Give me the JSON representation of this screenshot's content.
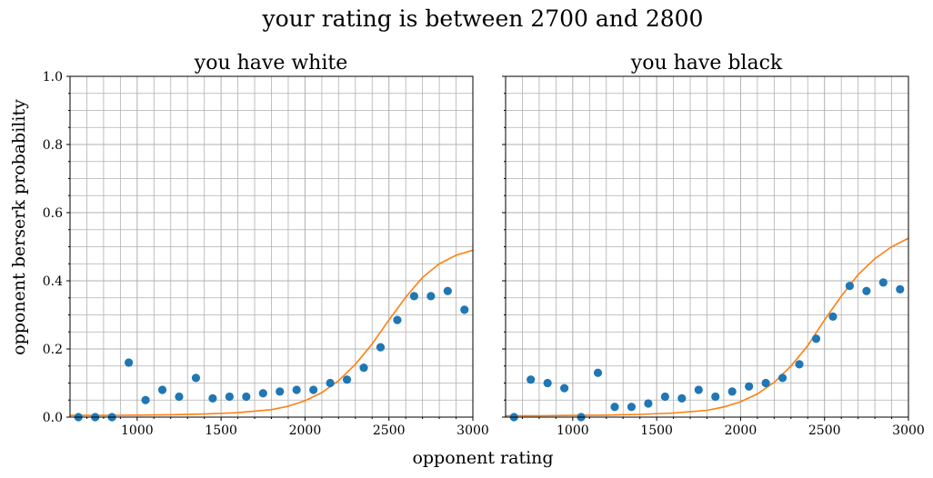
{
  "figure": {
    "suptitle": "your rating is between 2700 and 2800",
    "xlabel": "opponent rating",
    "ylabel": "opponent berserk probability"
  },
  "chart_data": [
    {
      "type": "scatter",
      "title": "you have white",
      "xlim": [
        600,
        3000
      ],
      "ylim": [
        0,
        1.0
      ],
      "xticks": [
        1000,
        1500,
        2000,
        2500,
        3000
      ],
      "xtick_labels": [
        "1000",
        "1500",
        "2000",
        "2500",
        "3000"
      ],
      "yticks": [
        0.0,
        0.2,
        0.4,
        0.6,
        0.8,
        1.0
      ],
      "ytick_labels": [
        "0.0",
        "0.2",
        "0.4",
        "0.6",
        "0.8",
        "1.0"
      ],
      "grid": true,
      "marker_color": "#1f77b4",
      "curve_color": "#ff7f0e",
      "points": {
        "x": [
          650,
          750,
          850,
          950,
          1050,
          1150,
          1250,
          1350,
          1450,
          1550,
          1650,
          1750,
          1850,
          1950,
          2050,
          2150,
          2250,
          2350,
          2450,
          2550,
          2650,
          2750,
          2850,
          2950
        ],
        "y": [
          0.0,
          0.0,
          0.0,
          0.16,
          0.05,
          0.08,
          0.06,
          0.115,
          0.055,
          0.06,
          0.06,
          0.07,
          0.075,
          0.08,
          0.08,
          0.1,
          0.11,
          0.145,
          0.205,
          0.285,
          0.355,
          0.355,
          0.37,
          0.315
        ]
      },
      "curve": {
        "x": [
          600,
          800,
          1000,
          1200,
          1400,
          1600,
          1800,
          1900,
          2000,
          2100,
          2200,
          2300,
          2400,
          2500,
          2600,
          2700,
          2800,
          2900,
          3000
        ],
        "y": [
          0.005,
          0.005,
          0.006,
          0.007,
          0.009,
          0.013,
          0.022,
          0.032,
          0.048,
          0.072,
          0.107,
          0.155,
          0.215,
          0.285,
          0.352,
          0.41,
          0.45,
          0.475,
          0.49
        ]
      }
    },
    {
      "type": "scatter",
      "title": "you have black",
      "xlim": [
        600,
        3000
      ],
      "ylim": [
        0,
        1.0
      ],
      "xticks": [
        1000,
        1500,
        2000,
        2500,
        3000
      ],
      "xtick_labels": [
        "1000",
        "1500",
        "2000",
        "2500",
        "3000"
      ],
      "yticks": [
        0.0,
        0.2,
        0.4,
        0.6,
        0.8,
        1.0
      ],
      "grid": true,
      "marker_color": "#1f77b4",
      "curve_color": "#ff7f0e",
      "points": {
        "x": [
          650,
          750,
          850,
          950,
          1050,
          1150,
          1250,
          1350,
          1450,
          1550,
          1650,
          1750,
          1850,
          1950,
          2050,
          2150,
          2250,
          2350,
          2450,
          2550,
          2650,
          2750,
          2850,
          2950
        ],
        "y": [
          0.0,
          0.11,
          0.1,
          0.085,
          0.0,
          0.13,
          0.03,
          0.03,
          0.04,
          0.06,
          0.055,
          0.08,
          0.06,
          0.075,
          0.09,
          0.1,
          0.115,
          0.155,
          0.23,
          0.295,
          0.385,
          0.37,
          0.395,
          0.375
        ]
      },
      "curve": {
        "x": [
          600,
          800,
          1000,
          1200,
          1400,
          1600,
          1800,
          1900,
          2000,
          2100,
          2200,
          2300,
          2400,
          2500,
          2600,
          2700,
          2800,
          2900,
          3000
        ],
        "y": [
          0.004,
          0.004,
          0.005,
          0.006,
          0.008,
          0.012,
          0.02,
          0.03,
          0.045,
          0.068,
          0.102,
          0.15,
          0.21,
          0.285,
          0.355,
          0.418,
          0.465,
          0.5,
          0.525
        ]
      }
    }
  ]
}
